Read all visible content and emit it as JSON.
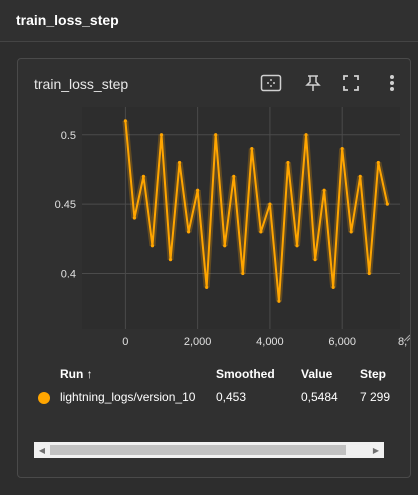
{
  "header": {
    "title": "train_loss_step"
  },
  "card": {
    "title": "train_loss_step"
  },
  "toolbar": {
    "fit_icon": "fit-domain-icon",
    "pin_icon": "pin-icon",
    "fullscreen_icon": "fullscreen-icon",
    "more_icon": "more-vert-icon"
  },
  "chart_data": {
    "type": "line",
    "title": "",
    "xlabel": "",
    "ylabel": "",
    "xlim": [
      -1200,
      7600
    ],
    "ylim": [
      0.36,
      0.52
    ],
    "x_ticks": [
      "0",
      "2,000",
      "4,000",
      "6,000",
      "8,"
    ],
    "x_tick_values": [
      0,
      2000,
      4000,
      6000,
      8000
    ],
    "y_ticks": [
      "0.4",
      "0.45",
      "0.5"
    ],
    "y_tick_values": [
      0.4,
      0.45,
      0.5
    ],
    "grid": true,
    "series": [
      {
        "color": "#ffa500",
        "x": [
          0,
          250,
          500,
          750,
          1000,
          1250,
          1500,
          1750,
          2000,
          2250,
          2500,
          2750,
          3000,
          3250,
          3500,
          3750,
          4000,
          4250,
          4500,
          4750,
          5000,
          5250,
          5500,
          5750,
          6000,
          6250,
          6500,
          6750,
          7000,
          7250
        ],
        "y": [
          0.51,
          0.44,
          0.47,
          0.42,
          0.5,
          0.41,
          0.48,
          0.43,
          0.46,
          0.39,
          0.5,
          0.42,
          0.47,
          0.4,
          0.49,
          0.43,
          0.45,
          0.38,
          0.48,
          0.42,
          0.5,
          0.41,
          0.46,
          0.39,
          0.49,
          0.43,
          0.47,
          0.4,
          0.48,
          0.45
        ]
      }
    ]
  },
  "table": {
    "headers": {
      "run": "Run ↑",
      "smoothed": "Smoothed",
      "value": "Value",
      "step": "Step"
    },
    "rows": [
      {
        "run": "lightning_logs/version_10",
        "smoothed": "0,453",
        "value": "0,5484",
        "step": "7 299",
        "color": "#ffa500"
      }
    ]
  },
  "scrollbar": {
    "left_arrow": "◀",
    "right_arrow": "▶"
  }
}
